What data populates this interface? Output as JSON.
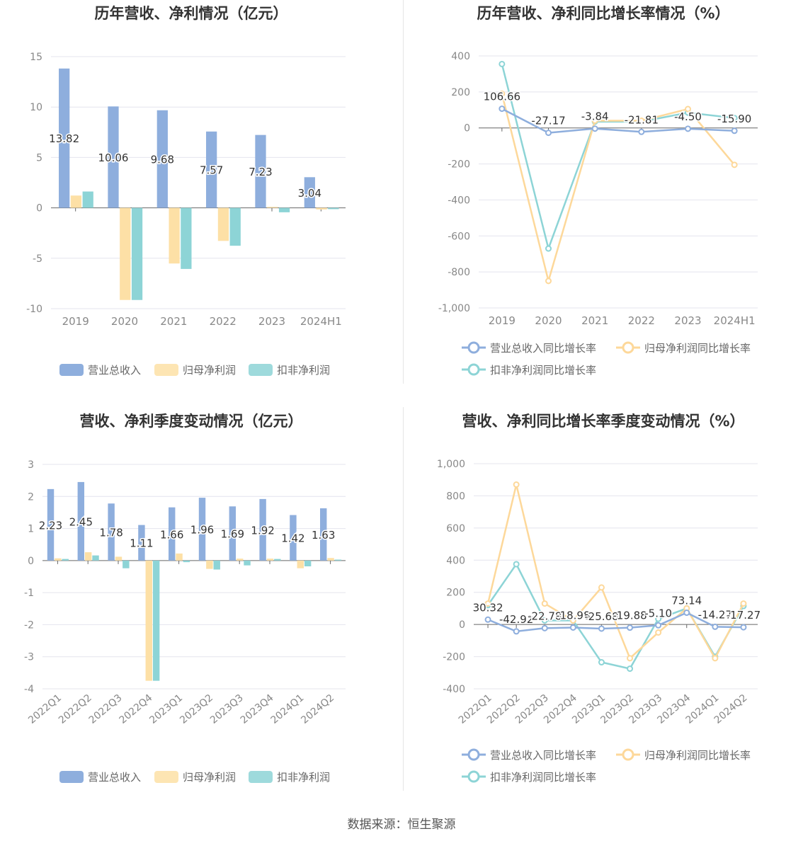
{
  "colors": {
    "revenue": "#8eaedd",
    "net": "#fde0a6",
    "deduct": "#8dd4d6",
    "line_revenue": "#8eaedd",
    "line_net": "#fdd89a",
    "line_deduct": "#8dd4d6"
  },
  "source": "数据来源：恒生聚源",
  "chart_data": [
    {
      "type": "bar",
      "title": "历年营收、净利情况（亿元）",
      "categories": [
        "2019",
        "2020",
        "2021",
        "2022",
        "2023",
        "2024H1"
      ],
      "ylim": [
        -10,
        15
      ],
      "yticks": [
        15,
        10,
        5,
        0,
        -5,
        -10
      ],
      "ytick_labels": [
        "15",
        "10",
        "5",
        "0",
        "-5",
        "-10"
      ],
      "series": [
        {
          "name": "营业总收入",
          "values": [
            13.82,
            10.06,
            9.68,
            7.57,
            7.23,
            3.04
          ],
          "labels": [
            "13.82",
            "10.06",
            "9.68",
            "7.57",
            "7.23",
            "3.04"
          ]
        },
        {
          "name": "归母净利润",
          "values": [
            1.22,
            -9.14,
            -5.52,
            -3.28,
            0.09,
            -0.16
          ]
        },
        {
          "name": "扣非净利润",
          "values": [
            1.62,
            -9.14,
            -6.06,
            -3.76,
            -0.44,
            -0.13
          ]
        }
      ],
      "legend": [
        "营业总收入",
        "归母净利润",
        "扣非净利润"
      ],
      "legend_position": "bottom"
    },
    {
      "type": "line",
      "title": "历年营收、净利同比增长率情况（%）",
      "categories": [
        "2019",
        "2020",
        "2021",
        "2022",
        "2023",
        "2024H1"
      ],
      "ylim": [
        -1000,
        400
      ],
      "yticks": [
        400,
        200,
        0,
        -200,
        -400,
        -600,
        -800,
        -1000
      ],
      "ytick_labels": [
        "400",
        "200",
        "0",
        "-200",
        "-400",
        "-600",
        "-800",
        "-1,000"
      ],
      "series": [
        {
          "name": "营业总收入同比增长率",
          "values": [
            106.66,
            -27.17,
            -3.84,
            -21.81,
            -4.5,
            -15.9
          ],
          "labels": [
            "106.66",
            "-27.17",
            "-3.84",
            "-21.81",
            "-4.50",
            "-15.90"
          ]
        },
        {
          "name": "归母净利润同比增长率",
          "values": [
            190,
            -850,
            40,
            40,
            105,
            -205
          ]
        },
        {
          "name": "扣非净利润同比增长率",
          "values": [
            355,
            -670,
            35,
            35,
            85,
            55
          ]
        }
      ],
      "legend": [
        "营业总收入同比增长率",
        "归母净利润同比增长率",
        "扣非净利润同比增长率"
      ],
      "legend_position": "bottom"
    },
    {
      "type": "bar",
      "title": "营收、净利季度变动情况（亿元）",
      "categories": [
        "2022Q1",
        "2022Q2",
        "2022Q3",
        "2022Q4",
        "2023Q1",
        "2023Q2",
        "2023Q3",
        "2023Q4",
        "2024Q1",
        "2024Q2"
      ],
      "ylim": [
        -4,
        3
      ],
      "yticks": [
        3,
        2,
        1,
        0,
        -1,
        -2,
        -3,
        -4
      ],
      "ytick_labels": [
        "3",
        "2",
        "1",
        "0",
        "-1",
        "-2",
        "-3",
        "-4"
      ],
      "series": [
        {
          "name": "营业总收入",
          "values": [
            2.23,
            2.45,
            1.78,
            1.11,
            1.66,
            1.96,
            1.69,
            1.92,
            1.42,
            1.63
          ],
          "labels": [
            "2.23",
            "2.45",
            "1.78",
            "1.11",
            "1.66",
            "1.96",
            "1.69",
            "1.92",
            "1.42",
            "1.63"
          ]
        },
        {
          "name": "归母净利润",
          "values": [
            0.07,
            0.26,
            0.12,
            -3.75,
            0.22,
            -0.26,
            0.06,
            0.06,
            -0.24,
            0.08
          ]
        },
        {
          "name": "扣非净利润",
          "values": [
            0.05,
            0.16,
            -0.24,
            -3.75,
            -0.05,
            -0.28,
            -0.15,
            0.05,
            -0.18,
            0.03
          ]
        }
      ],
      "legend": [
        "营业总收入",
        "归母净利润",
        "扣非净利润"
      ],
      "legend_position": "bottom"
    },
    {
      "type": "line",
      "title": "营收、净利同比增长率季度变动情况（%）",
      "categories": [
        "2022Q1",
        "2022Q2",
        "2022Q3",
        "2022Q4",
        "2023Q1",
        "2023Q2",
        "2023Q3",
        "2023Q4",
        "2024Q1",
        "2024Q2"
      ],
      "ylim": [
        -400,
        1000
      ],
      "yticks": [
        1000,
        800,
        600,
        400,
        200,
        0,
        -200,
        -400
      ],
      "ytick_labels": [
        "1,000",
        "800",
        "600",
        "400",
        "200",
        "0",
        "-200",
        "-400"
      ],
      "series": [
        {
          "name": "营业总收入同比增长率",
          "values": [
            30.32,
            -42.92,
            -22.78,
            -18.98,
            -25.68,
            -19.88,
            -5.1,
            73.14,
            -14.27,
            -17.27
          ],
          "labels": [
            "30.32",
            "-42.92",
            "-22.78",
            "-18.98",
            "-25.68",
            "-19.88",
            "-5.10",
            "73.14",
            "-14.27",
            "-17.27"
          ]
        },
        {
          "name": "归母净利润同比增长率",
          "values": [
            130,
            870,
            130,
            25,
            230,
            -210,
            -50,
            100,
            -210,
            130
          ]
        },
        {
          "name": "扣非净利润同比增长率",
          "values": [
            120,
            375,
            25,
            25,
            -235,
            -275,
            35,
            100,
            -200,
            115
          ]
        }
      ],
      "legend": [
        "营业总收入同比增长率",
        "归母净利润同比增长率",
        "扣非净利润同比增长率"
      ],
      "legend_position": "bottom"
    }
  ]
}
